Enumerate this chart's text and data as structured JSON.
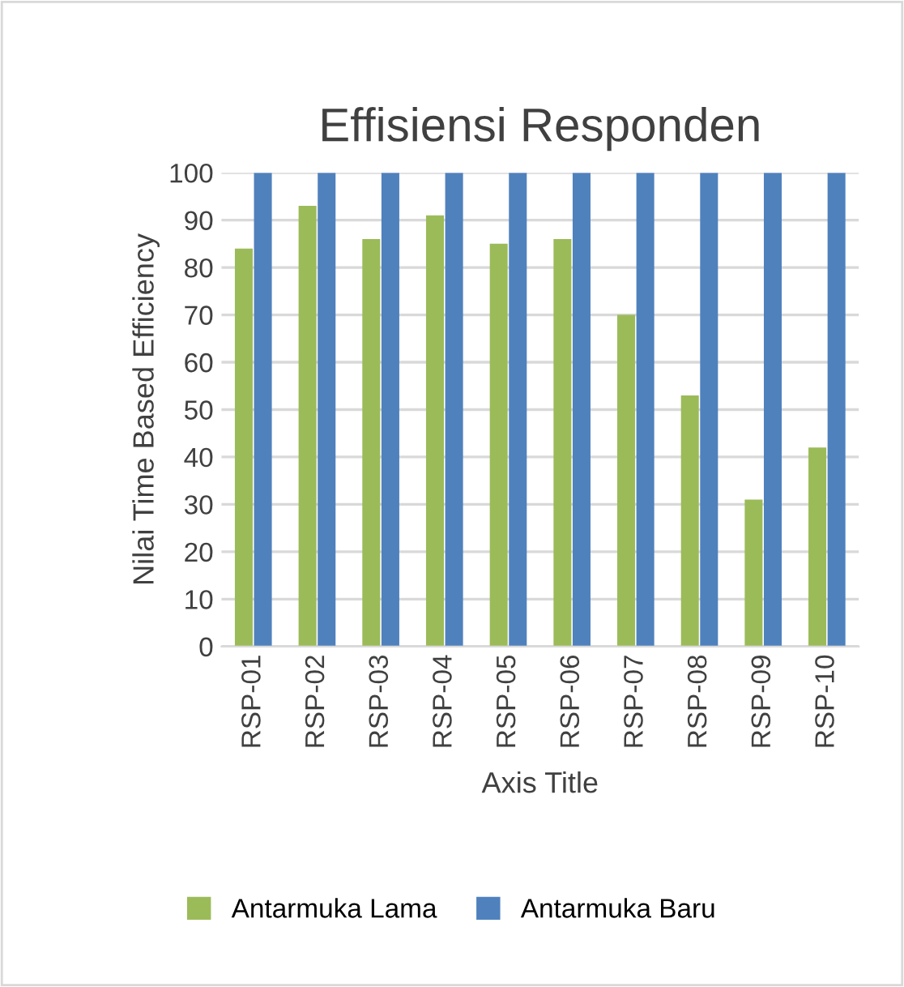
{
  "chart_data": {
    "type": "bar",
    "title": "Effisiensi Responden",
    "xlabel": "Axis Title",
    "ylabel": "Nilai Time Based Efficiency",
    "categories": [
      "RSP-01",
      "RSP-02",
      "RSP-03",
      "RSP-04",
      "RSP-05",
      "RSP-06",
      "RSP-07",
      "RSP-08",
      "RSP-09",
      "RSP-10"
    ],
    "series": [
      {
        "name": "Antarmuka Lama",
        "color": "#9bbb59",
        "values": [
          84,
          93,
          86,
          91,
          85,
          86,
          70,
          53,
          31,
          42
        ]
      },
      {
        "name": "Antarmuka Baru",
        "color": "#4f81bd",
        "values": [
          100,
          100,
          100,
          100,
          100,
          100,
          100,
          100,
          100,
          100
        ]
      }
    ],
    "ylim": [
      0,
      100
    ],
    "yticks": [
      0,
      10,
      20,
      30,
      40,
      50,
      60,
      70,
      80,
      90,
      100
    ],
    "grid": "y",
    "legend": "bottom"
  }
}
